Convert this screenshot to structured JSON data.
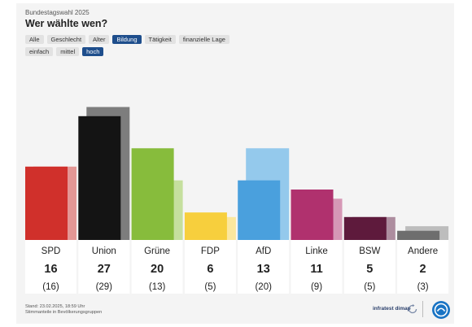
{
  "header": {
    "kicker": "Bundestagswahl 2025",
    "title": "Wer wählte wen?"
  },
  "filters": {
    "row1": [
      {
        "label": "Alle",
        "active": false
      },
      {
        "label": "Geschlecht",
        "active": false
      },
      {
        "label": "Alter",
        "active": false
      },
      {
        "label": "Bildung",
        "active": true
      },
      {
        "label": "Tätigkeit",
        "active": false
      },
      {
        "label": "finanzielle Lage",
        "active": false
      }
    ],
    "row2": [
      {
        "label": "einfach",
        "active": false
      },
      {
        "label": "mittel",
        "active": false
      },
      {
        "label": "hoch",
        "active": true
      }
    ]
  },
  "chart_data": {
    "type": "bar",
    "title": "",
    "ylim": [
      0,
      33
    ],
    "categories": [
      "SPD",
      "Union",
      "Grüne",
      "FDP",
      "AfD",
      "Linke",
      "BSW",
      "Andere"
    ],
    "series": [
      {
        "values": [
          16,
          27,
          20,
          6,
          13,
          11,
          5,
          2
        ]
      },
      {
        "values": [
          16,
          29,
          13,
          5,
          20,
          9,
          5,
          3
        ]
      }
    ],
    "value_labels": [
      "16",
      "27",
      "20",
      "6",
      "13",
      "11",
      "5",
      "2"
    ],
    "previous_labels": [
      "(16)",
      "(29)",
      "(13)",
      "(5)",
      "(20)",
      "(9)",
      "(5)",
      "(3)"
    ],
    "colors": [
      "#d0302b",
      "#141414",
      "#87bc3c",
      "#f7cf3d",
      "#4aa0dd",
      "#b0316e",
      "#5e1a3c",
      "#6e6e6e"
    ],
    "previous_colors": [
      "#e49795",
      "#7d7d7d",
      "#c5df9e",
      "#fbe79e",
      "#94c9ec",
      "#d698b6",
      "#ad8d9f",
      "#bdbdbd"
    ],
    "grid": false
  },
  "footer": {
    "line1": "Stand: 23.02.2025, 18:59 Uhr",
    "line2": "Stimmanteile in Bevölkerungsgruppen",
    "brand": "infratest dimap"
  }
}
